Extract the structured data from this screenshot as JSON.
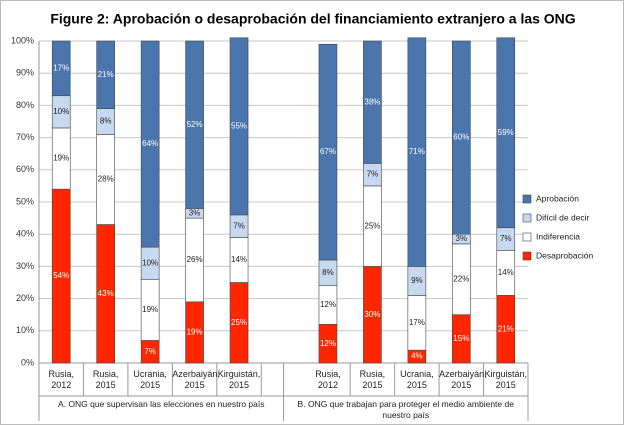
{
  "chart_data": {
    "type": "stacked-bar",
    "title": "Figure 2: Aprobación o desaprobación del financiamiento extranjero a las ONG",
    "categories": [
      "Rusia, 2012",
      "Rusia, 2015",
      "Ucrania, 2015",
      "Azerbaiyán, 2015",
      "Kirguistán, 2015",
      null,
      "Rusia, 2012",
      "Rusia, 2015",
      "Ucrania, 2015",
      "Azerbaiyán, 2015",
      "Kirguistán, 2015"
    ],
    "groups": [
      "A. ONG que supervisan las elecciones en nuestro país",
      "B. ONG que trabajan para proteger el medio ambiente de nuestro país"
    ],
    "series": [
      {
        "name": "Desaprobación",
        "color": "#ff2600",
        "values": [
          54,
          43,
          7,
          19,
          25,
          null,
          12,
          30,
          4,
          15,
          21
        ],
        "value_labels": [
          "54%",
          "43%",
          "7%",
          "19%",
          "25%",
          null,
          "12%",
          "30%",
          "4%",
          "15%",
          "21%"
        ]
      },
      {
        "name": "Indiferencia",
        "color": "#ffffff",
        "values": [
          19,
          28,
          19,
          26,
          14,
          null,
          12,
          25,
          17,
          22,
          14
        ],
        "value_labels": [
          "19%",
          "28%",
          "19%",
          "26%",
          "14%",
          null,
          "12%",
          "25%",
          "17%",
          "22%",
          "14%"
        ]
      },
      {
        "name": "Difícil de decir",
        "color": "#c6d9f1",
        "values": [
          10,
          8,
          10,
          3,
          7,
          null,
          8,
          7,
          9,
          3,
          7
        ],
        "value_labels": [
          "10%",
          "8%",
          "10%",
          "3%",
          "7%",
          null,
          "8%",
          "7%",
          "9%",
          "3%",
          "7%"
        ]
      },
      {
        "name": "Aprobación",
        "color": "#4a76ad",
        "values": [
          17,
          21,
          64,
          52,
          55,
          null,
          67,
          38,
          71,
          60,
          59
        ],
        "value_labels": [
          "17%",
          "21%",
          "64%",
          "52%",
          "55%",
          null,
          "67%",
          "38%",
          "71%",
          "60%",
          "59%"
        ]
      }
    ],
    "ylim": [
      0,
      100
    ],
    "yticks": [
      {
        "value": 0,
        "label": "0%"
      },
      {
        "value": 10,
        "label": "10%"
      },
      {
        "value": 20,
        "label": "20%"
      },
      {
        "value": 30,
        "label": "30%"
      },
      {
        "value": 40,
        "label": "40%"
      },
      {
        "value": 50,
        "label": "50%"
      },
      {
        "value": 60,
        "label": "60%"
      },
      {
        "value": 70,
        "label": "70%"
      },
      {
        "value": 80,
        "label": "80%"
      },
      {
        "value": 90,
        "label": "90%"
      },
      {
        "value": 100,
        "label": "100%"
      }
    ],
    "grid": true,
    "legend": "right"
  }
}
